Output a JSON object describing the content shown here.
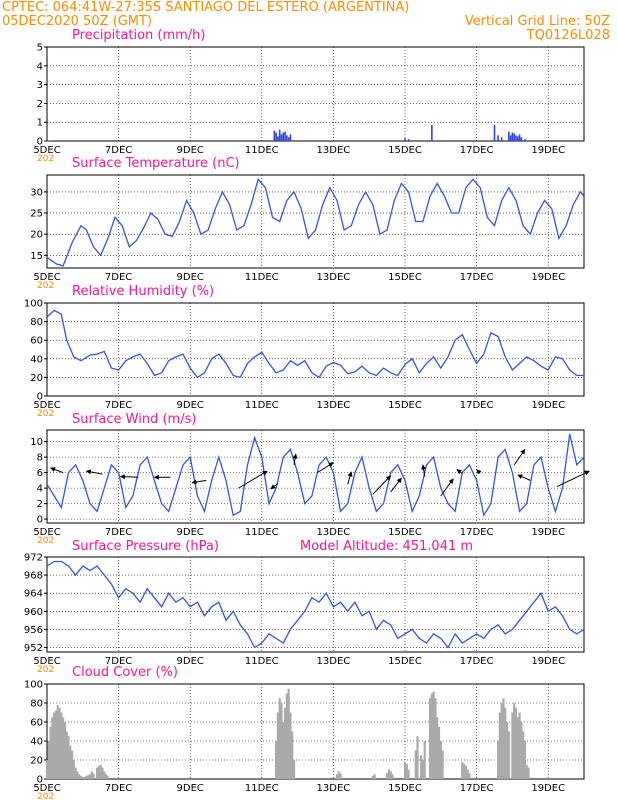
{
  "header": {
    "line1_left": "CPTEC:  064:41W-27:35S  SANTIAGO DEL ESTERO (ARGENTINA)",
    "line2_left": "05DEC2020 50Z (GMT)",
    "line2_right": "Vertical Grid Line: 50Z",
    "line3_right": "TQ0126L028"
  },
  "x_axis": {
    "tick_labels": [
      "5DEC",
      "7DEC",
      "9DEC",
      "11DEC",
      "13DEC",
      "15DEC",
      "17DEC",
      "19DEC"
    ],
    "tick_days": [
      0,
      2,
      4,
      6,
      8,
      10,
      12,
      14
    ],
    "year_tag": "202",
    "range_days": [
      0,
      15
    ]
  },
  "colors": {
    "line": "#3355dd",
    "bar": "#3344dd",
    "cloud": "#aaaaaa",
    "title": "#ff1493",
    "header": "#ff8c00"
  },
  "chart_data": [
    {
      "id": "precip",
      "type": "bar",
      "title": "Precipitation (mm/h)",
      "ylim": [
        0,
        5
      ],
      "yticks": [
        0,
        1,
        2,
        3,
        4,
        5
      ],
      "x": [
        0.0,
        0.05,
        0.1,
        6.35,
        6.4,
        6.45,
        6.5,
        6.55,
        6.6,
        6.65,
        6.7,
        6.75,
        6.8,
        10.0,
        10.1,
        10.75,
        12.5,
        12.6,
        12.7,
        12.9,
        12.95,
        13.0,
        13.05,
        13.1,
        13.15,
        13.2,
        13.25,
        13.35
      ],
      "values": [
        0.02,
        0.03,
        0.02,
        0.55,
        0.45,
        0.25,
        0.6,
        0.35,
        0.45,
        0.5,
        0.3,
        0.2,
        0.35,
        0.15,
        0.1,
        0.85,
        0.85,
        0.3,
        0.2,
        0.5,
        0.3,
        0.45,
        0.4,
        0.3,
        0.25,
        0.35,
        0.2,
        0.1
      ]
    },
    {
      "id": "temp",
      "type": "line",
      "title": "Surface Temperature (nC)",
      "ylim": [
        12,
        34
      ],
      "yticks": [
        15,
        20,
        25,
        30
      ],
      "x": [
        0,
        0.25,
        0.45,
        0.7,
        0.95,
        1.1,
        1.3,
        1.5,
        1.7,
        1.9,
        2.1,
        2.3,
        2.5,
        2.7,
        2.9,
        3.1,
        3.3,
        3.5,
        3.7,
        3.9,
        4.1,
        4.3,
        4.5,
        4.7,
        4.9,
        5.1,
        5.3,
        5.5,
        5.7,
        5.9,
        6.1,
        6.3,
        6.5,
        6.7,
        6.9,
        7.1,
        7.3,
        7.5,
        7.7,
        7.9,
        8.1,
        8.3,
        8.5,
        8.7,
        8.9,
        9.1,
        9.3,
        9.5,
        9.7,
        9.9,
        10.1,
        10.3,
        10.5,
        10.7,
        10.9,
        11.1,
        11.3,
        11.5,
        11.7,
        11.9,
        12.1,
        12.3,
        12.5,
        12.7,
        12.9,
        13.1,
        13.3,
        13.5,
        13.7,
        13.9,
        14.1,
        14.3,
        14.5,
        14.7,
        14.9,
        15
      ],
      "values": [
        14.5,
        13,
        12.5,
        18,
        22,
        21,
        17,
        15,
        19,
        24,
        22,
        17,
        18.5,
        21.5,
        25,
        23.5,
        20,
        19.5,
        23,
        28,
        25,
        20,
        21,
        26,
        30,
        27,
        21,
        22,
        27,
        33,
        31,
        24,
        23,
        28,
        30,
        26,
        19,
        21,
        27,
        31,
        28,
        21,
        22,
        27,
        30,
        27,
        20,
        21,
        28,
        32,
        30,
        23,
        23,
        29,
        32,
        29,
        25,
        25,
        31,
        33,
        31,
        24,
        22,
        28,
        31,
        28,
        22,
        20,
        25,
        28,
        26,
        19,
        22,
        27,
        30,
        29
      ]
    },
    {
      "id": "rh",
      "type": "line",
      "title": "Relative Humidity (%)",
      "ylim": [
        0,
        100
      ],
      "yticks": [
        0,
        20,
        40,
        60,
        80,
        100
      ],
      "x": [
        0,
        0.2,
        0.4,
        0.55,
        0.75,
        0.95,
        1.2,
        1.4,
        1.6,
        1.8,
        2.0,
        2.2,
        2.4,
        2.6,
        2.8,
        3.0,
        3.2,
        3.4,
        3.6,
        3.8,
        4.0,
        4.2,
        4.4,
        4.6,
        4.8,
        5.0,
        5.2,
        5.4,
        5.6,
        5.8,
        6.0,
        6.2,
        6.4,
        6.6,
        6.8,
        7.0,
        7.2,
        7.4,
        7.6,
        7.8,
        8.0,
        8.2,
        8.4,
        8.6,
        8.8,
        9.0,
        9.2,
        9.4,
        9.6,
        9.8,
        10.0,
        10.2,
        10.4,
        10.6,
        10.8,
        11.0,
        11.2,
        11.4,
        11.6,
        11.8,
        12.0,
        12.2,
        12.4,
        12.6,
        12.8,
        13.0,
        13.2,
        13.4,
        13.6,
        13.8,
        14.0,
        14.2,
        14.4,
        14.6,
        14.8,
        15
      ],
      "values": [
        85,
        92,
        88,
        60,
        42,
        38,
        44,
        45,
        48,
        30,
        28,
        38,
        42,
        45,
        35,
        22,
        25,
        38,
        42,
        45,
        30,
        20,
        25,
        40,
        45,
        35,
        22,
        20,
        35,
        42,
        47,
        35,
        25,
        28,
        38,
        33,
        38,
        25,
        20,
        32,
        36,
        33,
        24,
        26,
        32,
        25,
        22,
        30,
        25,
        22,
        34,
        40,
        25,
        35,
        42,
        30,
        42,
        60,
        66,
        50,
        35,
        45,
        68,
        64,
        42,
        28,
        35,
        42,
        38,
        32,
        28,
        42,
        40,
        28,
        22,
        22
      ]
    },
    {
      "id": "wind",
      "type": "line",
      "title": "Surface Wind (m/s)",
      "ylim": [
        -0.5,
        11.5
      ],
      "yticks": [
        0,
        2,
        4,
        6,
        8,
        10
      ],
      "x": [
        0,
        0.2,
        0.4,
        0.6,
        0.8,
        1.0,
        1.2,
        1.4,
        1.6,
        1.8,
        2.0,
        2.2,
        2.4,
        2.6,
        2.8,
        3.0,
        3.2,
        3.4,
        3.6,
        3.8,
        4.0,
        4.2,
        4.4,
        4.6,
        4.8,
        5.0,
        5.2,
        5.4,
        5.6,
        5.8,
        6.0,
        6.2,
        6.4,
        6.6,
        6.8,
        7.0,
        7.2,
        7.4,
        7.6,
        7.8,
        8.0,
        8.2,
        8.4,
        8.6,
        8.8,
        9.0,
        9.2,
        9.4,
        9.6,
        9.8,
        10.0,
        10.2,
        10.4,
        10.6,
        10.8,
        11.0,
        11.2,
        11.4,
        11.6,
        11.8,
        12.0,
        12.2,
        12.4,
        12.6,
        12.8,
        13.0,
        13.2,
        13.4,
        13.6,
        13.8,
        14.0,
        14.2,
        14.4,
        14.6,
        14.8,
        15
      ],
      "values": [
        4.5,
        3,
        1.5,
        6,
        7,
        5,
        2,
        1,
        4,
        7,
        6,
        1.5,
        3,
        7,
        8,
        5,
        2,
        1,
        4,
        7,
        8,
        3,
        1,
        5,
        8,
        5,
        0.5,
        1,
        7,
        10.5,
        8,
        2,
        4,
        8,
        9,
        6,
        2,
        3,
        7,
        8,
        6,
        1,
        2,
        6,
        8,
        4,
        1,
        2,
        6,
        7,
        5,
        1,
        3,
        7,
        8,
        4,
        2,
        1,
        6,
        7,
        5,
        0.5,
        2,
        8,
        9,
        6,
        1,
        2,
        7,
        8,
        4,
        1,
        4,
        11,
        7,
        8
      ],
      "barbs": [
        {
          "x": 0.45,
          "y": 6.0,
          "dx": -0.35,
          "dy": 0.6
        },
        {
          "x": 1.55,
          "y": 5.8,
          "dx": -0.45,
          "dy": 0.4
        },
        {
          "x": 2.55,
          "y": 5.4,
          "dx": -0.5,
          "dy": 0.1
        },
        {
          "x": 3.45,
          "y": 5.4,
          "dx": -0.45,
          "dy": 0.0
        },
        {
          "x": 4.45,
          "y": 5.0,
          "dx": -0.4,
          "dy": -0.3
        },
        {
          "x": 5.35,
          "y": 4.0,
          "dx": 0.8,
          "dy": 2.2
        },
        {
          "x": 6.45,
          "y": 4.6,
          "dx": -0.2,
          "dy": -0.7
        },
        {
          "x": 6.9,
          "y": 7.0,
          "dx": 0.05,
          "dy": 1.4
        },
        {
          "x": 7.55,
          "y": 6.0,
          "dx": 0.45,
          "dy": 1.3
        },
        {
          "x": 8.4,
          "y": 4.5,
          "dx": 0.1,
          "dy": 1.6
        },
        {
          "x": 9.1,
          "y": 3.2,
          "dx": 0.5,
          "dy": 2.4
        },
        {
          "x": 9.6,
          "y": 3.5,
          "dx": 0.3,
          "dy": 1.8
        },
        {
          "x": 10.55,
          "y": 5.5,
          "dx": -0.05,
          "dy": 1.5
        },
        {
          "x": 11.0,
          "y": 3.0,
          "dx": 0.35,
          "dy": 2.2
        },
        {
          "x": 11.6,
          "y": 5.9,
          "dx": -0.15,
          "dy": 0.5
        },
        {
          "x": 12.1,
          "y": 5.9,
          "dx": -0.1,
          "dy": 0.5
        },
        {
          "x": 13.05,
          "y": 7.0,
          "dx": 0.3,
          "dy": 2.0
        },
        {
          "x": 13.5,
          "y": 5.0,
          "dx": -0.35,
          "dy": 0.7
        },
        {
          "x": 14.25,
          "y": 4.2,
          "dx": 0.9,
          "dy": 2.0
        }
      ]
    },
    {
      "id": "pressure",
      "type": "line",
      "title": "Surface Pressure (hPa)",
      "annotation": "Model Altitude: 451.041 m",
      "ylim": [
        951,
        972
      ],
      "yticks": [
        952,
        956,
        960,
        964,
        968,
        972
      ],
      "x": [
        0,
        0.2,
        0.4,
        0.6,
        0.8,
        1.0,
        1.2,
        1.4,
        1.6,
        1.8,
        2.0,
        2.2,
        2.4,
        2.6,
        2.8,
        3.0,
        3.2,
        3.4,
        3.6,
        3.8,
        4.0,
        4.2,
        4.4,
        4.6,
        4.8,
        5.0,
        5.2,
        5.4,
        5.6,
        5.8,
        6.0,
        6.2,
        6.4,
        6.6,
        6.8,
        7.0,
        7.2,
        7.4,
        7.6,
        7.8,
        8.0,
        8.2,
        8.4,
        8.6,
        8.8,
        9.0,
        9.2,
        9.4,
        9.6,
        9.8,
        10.0,
        10.2,
        10.4,
        10.6,
        10.8,
        11.0,
        11.2,
        11.4,
        11.6,
        11.8,
        12.0,
        12.2,
        12.4,
        12.6,
        12.8,
        13.0,
        13.2,
        13.4,
        13.6,
        13.8,
        14.0,
        14.2,
        14.4,
        14.6,
        14.8,
        15
      ],
      "values": [
        970,
        971,
        971,
        970,
        968,
        970,
        969,
        970,
        968,
        966,
        963,
        965,
        964,
        962,
        965,
        963,
        961,
        964,
        962,
        963,
        961,
        962,
        959,
        961,
        962,
        958,
        960,
        957,
        955,
        952,
        953,
        955,
        954,
        953,
        956,
        958,
        960,
        963,
        962,
        964,
        961,
        962,
        960,
        962,
        959,
        960,
        956,
        958,
        957,
        954,
        955,
        956,
        954,
        953,
        955,
        954,
        952,
        955,
        953,
        954,
        955,
        954,
        956,
        957,
        955,
        956,
        958,
        960,
        962,
        964,
        960,
        961,
        959,
        956,
        955,
        956
      ]
    },
    {
      "id": "cloud",
      "type": "bar",
      "title": "Cloud Cover (%)",
      "ylim": [
        0,
        100
      ],
      "yticks": [
        0,
        20,
        40,
        60,
        80,
        100
      ],
      "x": [
        0.0,
        0.05,
        0.1,
        0.15,
        0.2,
        0.25,
        0.3,
        0.35,
        0.4,
        0.45,
        0.5,
        0.55,
        0.6,
        0.65,
        0.7,
        0.75,
        0.8,
        0.85,
        0.9,
        0.95,
        1.0,
        1.05,
        1.1,
        1.15,
        1.2,
        1.25,
        1.3,
        1.4,
        1.45,
        1.5,
        1.55,
        1.6,
        1.65,
        1.7,
        6.4,
        6.45,
        6.5,
        6.55,
        6.6,
        6.65,
        6.7,
        6.75,
        6.8,
        6.85,
        6.9,
        8.1,
        8.15,
        8.2,
        9.1,
        9.15,
        9.5,
        9.55,
        9.6,
        9.65,
        10.0,
        10.05,
        10.1,
        10.3,
        10.35,
        10.45,
        10.5,
        10.55,
        10.7,
        10.75,
        10.8,
        10.85,
        10.9,
        10.95,
        11.0,
        11.05,
        11.6,
        11.65,
        11.7,
        11.75,
        11.8,
        12.6,
        12.65,
        12.7,
        12.75,
        12.8,
        12.85,
        12.9,
        13.0,
        13.05,
        13.1,
        13.15,
        13.2,
        13.25,
        13.3,
        13.35,
        13.4,
        13.45
      ],
      "values": [
        20,
        40,
        55,
        65,
        70,
        72,
        78,
        75,
        70,
        65,
        60,
        50,
        45,
        35,
        30,
        20,
        12,
        8,
        5,
        3,
        2,
        2,
        3,
        4,
        5,
        8,
        6,
        12,
        14,
        15,
        12,
        8,
        5,
        3,
        40,
        70,
        85,
        80,
        60,
        75,
        90,
        95,
        70,
        50,
        20,
        5,
        8,
        6,
        3,
        5,
        6,
        10,
        8,
        5,
        18,
        16,
        10,
        30,
        45,
        25,
        20,
        40,
        85,
        90,
        92,
        85,
        65,
        55,
        40,
        30,
        18,
        16,
        14,
        10,
        6,
        40,
        70,
        80,
        85,
        75,
        60,
        50,
        70,
        80,
        75,
        65,
        70,
        60,
        50,
        40,
        15,
        12
      ]
    }
  ]
}
